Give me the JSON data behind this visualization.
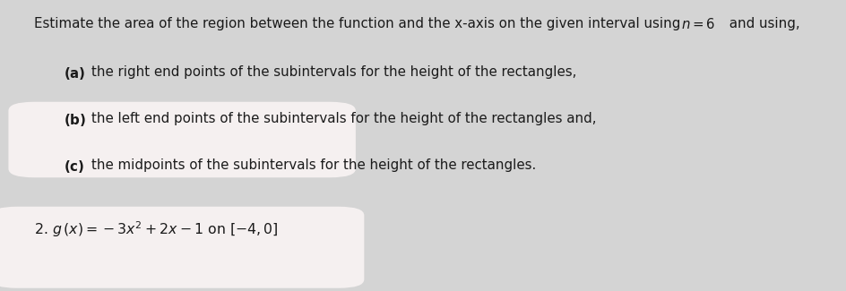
{
  "background_color": "#d4d4d4",
  "box1_color": "#f5f0f0",
  "box2_color": "#f5f0f0",
  "text_color": "#1a1a1a",
  "line1_prefix": "Estimate the area of the region between the function and the x-axis on the given interval using ",
  "line1_math": "n = 6",
  "line1_suffix": " and using,",
  "line2a_bold": "(a)",
  "line2a_rest": " the right end points of the subintervals for the height of the rectangles,",
  "line3b_bold": "(b)",
  "line3b_rest": " the left end points of the subintervals for the height of the rectangles and,",
  "line4c_bold": "(c)",
  "line4c_rest": " the midpoints of the subintervals for the height of the rectangles.",
  "line5": "2. g (x) = −3x² + 2x − 1 on [−4, 0]",
  "fig_width": 9.45,
  "fig_height": 3.25,
  "dpi": 100,
  "fontsize": 10.8
}
